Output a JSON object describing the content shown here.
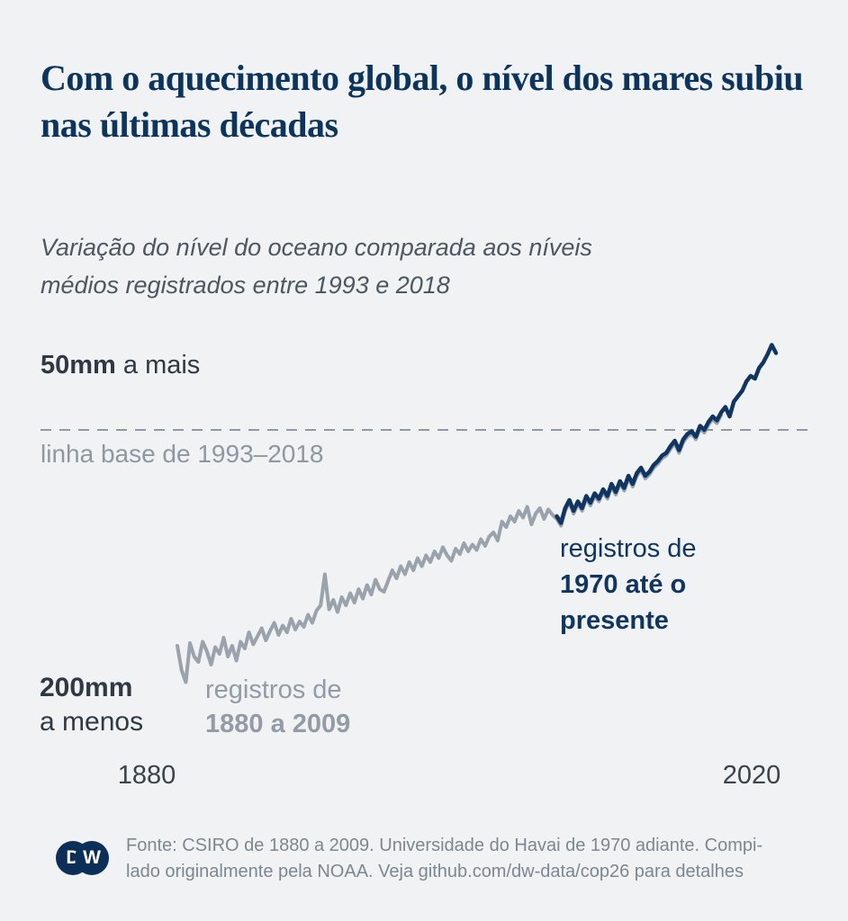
{
  "page": {
    "background": "#f0f2f4",
    "accent_navy": "#0f3562",
    "accent_gray": "#9aa2ac"
  },
  "header": {
    "title": "Com o aquecimento global, o nível dos mares subiu nas últimas décadas",
    "subtitle": "Variação do nível do oceano comparada aos níveis médios registrados entre 1993 e 2018"
  },
  "chart_data": {
    "type": "line",
    "title": "Variação do nível do oceano comparada aos níveis médios registrados entre 1993 e 2018",
    "unit": "mm",
    "x_axis": {
      "base_year": 1880,
      "ticks": [
        "1880",
        "2020"
      ]
    },
    "baseline": {
      "value": 0,
      "label": "linha base de 1993–2018",
      "color": "#8f99a3"
    },
    "annotations": {
      "above": {
        "value": "50mm",
        "suffix": " a mais",
        "mm": 50
      },
      "below": {
        "value": "200mm",
        "suffix": "a menos",
        "mm": -200
      }
    },
    "series": [
      {
        "name": "registros de 1880 a 2009",
        "source": "CSIRO",
        "color": "#9aa2ac",
        "width": 4,
        "start_year": 1880,
        "step": 1,
        "values": [
          -160,
          -178,
          -187,
          -158,
          -168,
          -172,
          -157,
          -164,
          -174,
          -161,
          -166,
          -154,
          -168,
          -160,
          -171,
          -157,
          -162,
          -150,
          -159,
          -153,
          -147,
          -156,
          -149,
          -143,
          -152,
          -145,
          -150,
          -140,
          -148,
          -142,
          -146,
          -137,
          -143,
          -134,
          -130,
          -107,
          -133,
          -126,
          -135,
          -124,
          -130,
          -121,
          -128,
          -118,
          -125,
          -115,
          -122,
          -111,
          -118,
          -120,
          -112,
          -104,
          -110,
          -101,
          -107,
          -98,
          -104,
          -95,
          -101,
          -93,
          -98,
          -90,
          -95,
          -87,
          -93,
          -97,
          -88,
          -92,
          -84,
          -90,
          -85,
          -89,
          -81,
          -86,
          -79,
          -76,
          -82,
          -68,
          -72,
          -64,
          -68,
          -60,
          -65,
          -57,
          -70,
          -62,
          -58,
          -66,
          -59,
          -63,
          -66,
          -71,
          -60,
          -54,
          -62,
          -55,
          -60,
          -51,
          -56,
          -49,
          -53,
          -46,
          -51,
          -42,
          -48,
          -40,
          -45,
          -36,
          -42,
          -34,
          -30,
          -36,
          -33,
          -28,
          -25,
          -21,
          -19,
          -14,
          -10,
          -17,
          -9,
          -5,
          -3,
          -7,
          1,
          -2,
          4,
          8,
          5,
          11
        ]
      },
      {
        "name": "registros de 1970 até o presente",
        "source": "Universidade do Havai",
        "color": "#0f3562",
        "width": 4.5,
        "start_year": 1970,
        "step": 1,
        "values": [
          -64,
          -69,
          -58,
          -52,
          -60,
          -53,
          -58,
          -49,
          -54,
          -47,
          -51,
          -44,
          -49,
          -40,
          -46,
          -38,
          -43,
          -34,
          -40,
          -32,
          -28,
          -34,
          -31,
          -26,
          -23,
          -19,
          -17,
          -12,
          -8,
          -15,
          -7,
          -3,
          -1,
          -5,
          3,
          0,
          6,
          10,
          7,
          13,
          17,
          10,
          21,
          25,
          29,
          36,
          40,
          38,
          46,
          50,
          56,
          63,
          57
        ]
      }
    ],
    "series_labels": {
      "gray": {
        "line1": "registros de",
        "line2": "1880 a 2009"
      },
      "navy": {
        "line1": "registros de",
        "line2": "1970 até o",
        "line3": "presente"
      }
    }
  },
  "footer": {
    "logo": {
      "letter_d": "D",
      "letter_w": "W"
    },
    "source_line1": "Fonte: CSIRO de 1880 a 2009. Universidade do Havai de 1970 adiante. Compi-",
    "source_line2": "lado originalmente pela NOAA. Veja github.com/dw-data/cop26 para detalhes"
  }
}
